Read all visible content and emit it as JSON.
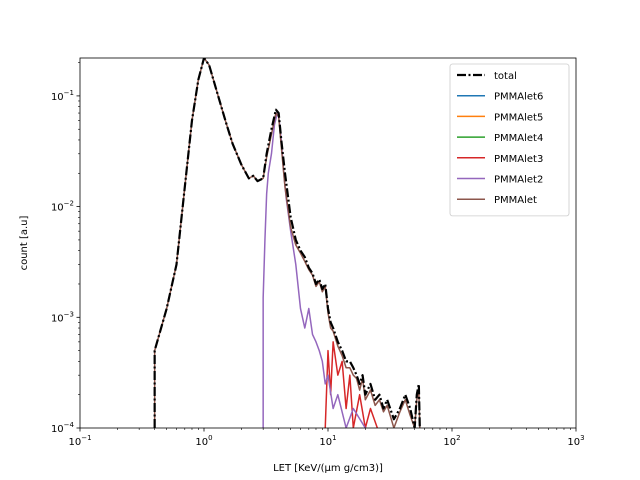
{
  "chart_data": {
    "type": "line",
    "xlabel": "LET [KeV/(μm g/cm3)]",
    "ylabel": "count [a.u]",
    "xscale": "log",
    "yscale": "log",
    "xlim": [
      0.1,
      1000
    ],
    "ylim": [
      0.0001,
      0.22
    ],
    "grid": false,
    "legend_position": "top-right",
    "x_ticks": [
      {
        "value": 0.1,
        "base": "10",
        "exp": "−1"
      },
      {
        "value": 1,
        "base": "10",
        "exp": "0"
      },
      {
        "value": 10,
        "base": "10",
        "exp": "1"
      },
      {
        "value": 100,
        "base": "10",
        "exp": "2"
      },
      {
        "value": 1000,
        "base": "10",
        "exp": "3"
      }
    ],
    "y_ticks": [
      {
        "value": 0.0001,
        "base": "10",
        "exp": "−4"
      },
      {
        "value": 0.001,
        "base": "10",
        "exp": "−3"
      },
      {
        "value": 0.01,
        "base": "10",
        "exp": "−2"
      },
      {
        "value": 0.1,
        "base": "10",
        "exp": "−1"
      }
    ],
    "series": [
      {
        "name": "total",
        "color": "#000000",
        "dash": "dashdot",
        "width": 2.2,
        "x": [
          0.4,
          0.4,
          0.5,
          0.6,
          0.7,
          0.8,
          0.9,
          1.0,
          1.1,
          1.3,
          1.5,
          1.7,
          2.0,
          2.3,
          2.5,
          2.7,
          3.0,
          3.2,
          3.5,
          3.8,
          4.0,
          4.2,
          4.5,
          5.0,
          5.5,
          6.0,
          6.5,
          7.0,
          7.5,
          8.0,
          8.5,
          9.0,
          9.5,
          10,
          10.5,
          11,
          12,
          13,
          14,
          15,
          16,
          17,
          18,
          19,
          20,
          22,
          24,
          26,
          28,
          30,
          34,
          38,
          42,
          46,
          50,
          52,
          54,
          55
        ],
        "y": [
          0.0001,
          0.0005,
          0.0012,
          0.003,
          0.015,
          0.06,
          0.14,
          0.22,
          0.19,
          0.1,
          0.058,
          0.037,
          0.024,
          0.018,
          0.019,
          0.017,
          0.018,
          0.03,
          0.05,
          0.075,
          0.07,
          0.04,
          0.02,
          0.008,
          0.005,
          0.004,
          0.0035,
          0.0028,
          0.0025,
          0.002,
          0.0022,
          0.0018,
          0.002,
          0.0012,
          0.0009,
          0.0008,
          0.0006,
          0.0005,
          0.0004,
          0.0004,
          0.00035,
          0.0003,
          0.00025,
          0.0003,
          0.0002,
          0.00025,
          0.00018,
          0.0002,
          0.00015,
          0.00018,
          0.00012,
          0.00015,
          0.0002,
          0.00015,
          0.0001,
          0.0002,
          0.00025,
          0.0001
        ]
      },
      {
        "name": "PMMAlet6",
        "color": "#1f77b4",
        "dash": "solid",
        "width": 1.5,
        "x": [],
        "y": []
      },
      {
        "name": "PMMAlet5",
        "color": "#ff7f0e",
        "dash": "solid",
        "width": 1.5,
        "x": [],
        "y": []
      },
      {
        "name": "PMMAlet4",
        "color": "#2ca02c",
        "dash": "solid",
        "width": 1.5,
        "x": [],
        "y": []
      },
      {
        "name": "PMMAlet3",
        "color": "#d62728",
        "dash": "solid",
        "width": 1.5,
        "x": [
          9.5,
          10,
          10.5,
          11,
          12,
          13,
          14,
          15,
          16,
          18,
          20,
          22,
          25
        ],
        "y": [
          0.0001,
          0.0005,
          0.0002,
          0.0006,
          0.0003,
          0.0004,
          0.00015,
          0.0003,
          0.0001,
          0.0002,
          0.0001,
          0.00015,
          0.0001
        ]
      },
      {
        "name": "PMMAlet2",
        "color": "#9467bd",
        "dash": "solid",
        "width": 1.5,
        "x": [
          3.0,
          3.0,
          3.1,
          3.2,
          3.3,
          3.5,
          3.7,
          3.9,
          4.0,
          4.2,
          4.4,
          4.6,
          5.0,
          5.5,
          6.0,
          6.5,
          7.0,
          7.5,
          8.0,
          8.5,
          9.0,
          9.5,
          10,
          11,
          12,
          14,
          16,
          20
        ],
        "y": [
          0.0001,
          0.0015,
          0.005,
          0.013,
          0.02,
          0.03,
          0.055,
          0.07,
          0.065,
          0.04,
          0.02,
          0.012,
          0.006,
          0.003,
          0.0012,
          0.0008,
          0.0012,
          0.0007,
          0.0006,
          0.0005,
          0.0004,
          0.00025,
          0.0003,
          0.00015,
          0.0002,
          0.0001,
          0.00015,
          0.0001
        ]
      },
      {
        "name": "PMMAlet",
        "color": "#8c564b",
        "dash": "solid",
        "width": 1.5,
        "x": [
          0.4,
          0.4,
          0.5,
          0.6,
          0.7,
          0.8,
          0.9,
          1.0,
          1.1,
          1.3,
          1.5,
          1.7,
          2.0,
          2.3,
          2.5,
          2.7,
          3.0,
          3.2,
          3.5,
          3.8,
          4.0,
          4.2,
          4.5,
          5.0,
          5.5,
          6.0,
          6.5,
          7.0,
          7.5,
          8.0,
          8.5,
          9.0,
          9.5,
          10,
          10.5,
          11,
          12,
          13,
          14,
          15,
          16,
          17,
          18,
          19,
          20,
          22,
          24,
          26,
          28,
          30,
          34,
          38,
          42,
          46,
          50,
          52,
          54,
          55
        ],
        "y": [
          0.0001,
          0.0005,
          0.0012,
          0.003,
          0.015,
          0.06,
          0.14,
          0.22,
          0.19,
          0.1,
          0.058,
          0.037,
          0.024,
          0.018,
          0.019,
          0.017,
          0.018,
          0.028,
          0.045,
          0.07,
          0.065,
          0.035,
          0.015,
          0.0065,
          0.0045,
          0.0038,
          0.0032,
          0.0027,
          0.0024,
          0.0019,
          0.0021,
          0.0017,
          0.0019,
          0.0011,
          0.0008,
          0.00075,
          0.00055,
          0.00045,
          0.00035,
          0.00035,
          0.0003,
          0.00028,
          0.00022,
          0.00028,
          0.00018,
          0.00022,
          0.00016,
          0.00018,
          0.00014,
          0.00016,
          0.0001,
          0.00014,
          0.00018,
          0.00013,
          0.0001,
          0.00018,
          0.00022,
          0.0001
        ]
      }
    ]
  }
}
